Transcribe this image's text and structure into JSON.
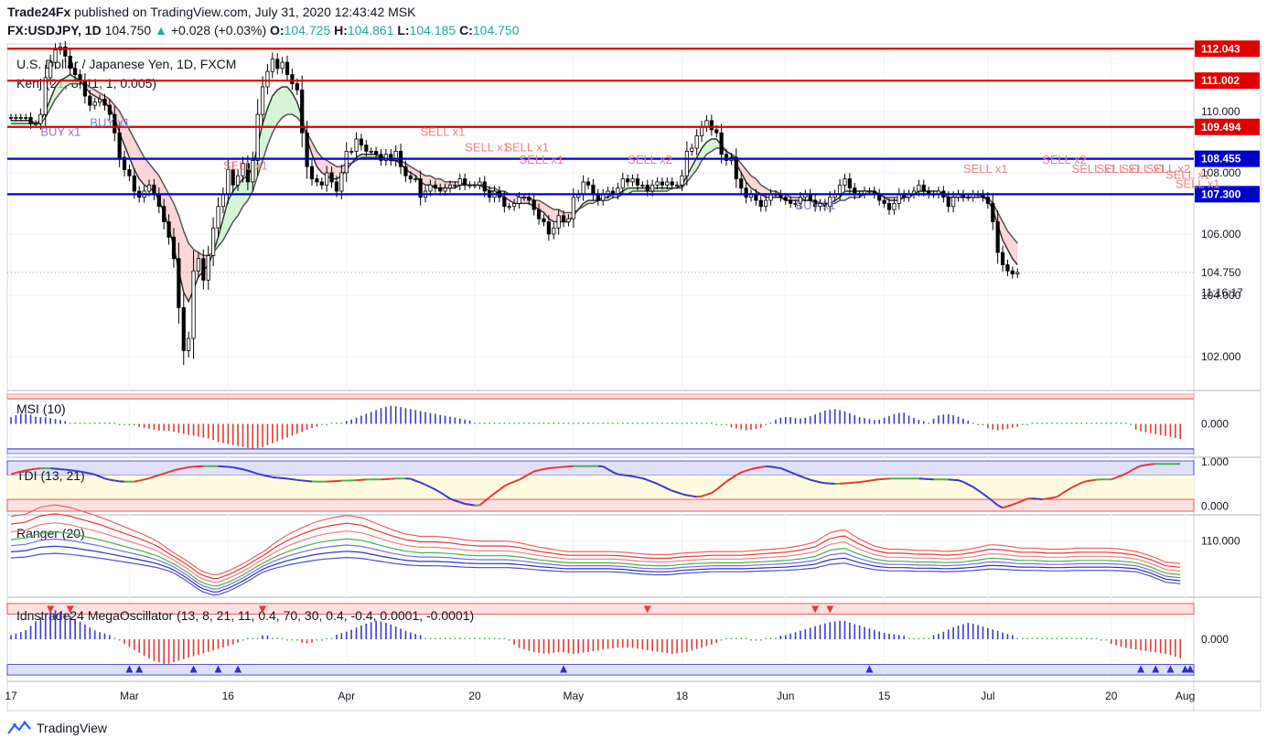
{
  "header": {
    "publisher": "Trade24Fx",
    "published_text": "published on TradingView.com, July 31, 2020 12:43:42 MSK",
    "symbol": "FX:USDJPY, 1D",
    "last": "104.750",
    "change": "+0.028 (+0.03%)",
    "open_label": "O:",
    "open": "104.725",
    "high_label": "H:",
    "high": "104.861",
    "low_label": "L:",
    "low": "104.185",
    "close_label": "C:",
    "close": "104.750"
  },
  "footer": {
    "brand": "TradingView"
  },
  "colors": {
    "up": "#26a69a",
    "red": "#ef5350",
    "blue_line": "#0000cc",
    "red_line": "#e00000",
    "grid": "#f0f3fa",
    "axis_text": "#131722",
    "cloud_red": "#f8c8c8",
    "cloud_green": "#c8f0c8"
  },
  "chart_data": [
    {
      "type": "candlestick",
      "title": "U.S. Dollar / Japanese Yen, 1D, FXCM",
      "indicator_label": "Kenj (21, 8, 11, 1, 0.005)",
      "y_ticks": [
        "110.000",
        "108.000",
        "106.000",
        "104.000",
        "102.000"
      ],
      "y_tick_values": [
        110,
        108,
        106,
        104,
        102
      ],
      "ylim": [
        100.9,
        112.2
      ],
      "x_ticks": [
        "17",
        "Mar",
        "16",
        "Apr",
        "20",
        "May",
        "18",
        "Jun",
        "15",
        "Jul",
        "20",
        "Aug"
      ],
      "x_tick_index": [
        0,
        24,
        44,
        68,
        94,
        114,
        136,
        157,
        177,
        198,
        223,
        238
      ],
      "last_price_label": "104.750",
      "countdown": "11:16:17",
      "levels": [
        {
          "value": 112.043,
          "label": "112.043",
          "color": "red"
        },
        {
          "value": 111.002,
          "label": "111.002",
          "color": "red"
        },
        {
          "value": 109.494,
          "label": "109.494",
          "color": "red"
        },
        {
          "value": 108.455,
          "label": "108.455",
          "color": "blue"
        },
        {
          "value": 107.3,
          "label": "107.300",
          "color": "blue"
        }
      ],
      "annotations": [
        {
          "text": "BUY x1",
          "i": 6,
          "y": 109.2,
          "kind": "buy"
        },
        {
          "text": "BUY x1",
          "i": 16,
          "y": 109.5,
          "kind": "buy"
        },
        {
          "text": "SELL x1",
          "i": 43,
          "y": 108.1,
          "kind": "sell"
        },
        {
          "text": "SELL x1",
          "i": 83,
          "y": 109.2,
          "kind": "sell"
        },
        {
          "text": "SELL x1",
          "i": 92,
          "y": 108.7,
          "kind": "sell"
        },
        {
          "text": "SELL x1",
          "i": 100,
          "y": 108.7,
          "kind": "sell"
        },
        {
          "text": "SELL x1",
          "i": 103,
          "y": 108.3,
          "kind": "sell"
        },
        {
          "text": "SELL x2",
          "i": 125,
          "y": 108.3,
          "kind": "sell"
        },
        {
          "text": "BUY x1",
          "i": 159,
          "y": 106.8,
          "kind": "buy"
        },
        {
          "text": "SELL x1",
          "i": 193,
          "y": 108.0,
          "kind": "sell"
        },
        {
          "text": "SELL x2",
          "i": 209,
          "y": 108.3,
          "kind": "sell"
        },
        {
          "text": "SELL x1",
          "i": 215,
          "y": 108.0,
          "kind": "sell"
        },
        {
          "text": "SELL x1",
          "i": 220,
          "y": 108.0,
          "kind": "sell"
        },
        {
          "text": "SELL x1",
          "i": 225,
          "y": 108.0,
          "kind": "sell"
        },
        {
          "text": "SELL x2",
          "i": 230,
          "y": 108.0,
          "kind": "sell"
        },
        {
          "text": "SELL x1",
          "i": 234,
          "y": 107.8,
          "kind": "sell"
        },
        {
          "text": "SELL x1",
          "i": 236,
          "y": 107.5,
          "kind": "sell"
        }
      ],
      "closes": [
        109.8,
        109.8,
        109.8,
        109.8,
        109.6,
        109.6,
        109.9,
        111.1,
        111.6,
        112.0,
        112.1,
        111.8,
        111.4,
        111.2,
        111.0,
        110.5,
        110.2,
        110.3,
        110.4,
        110.2,
        109.9,
        109.3,
        108.5,
        108.1,
        107.9,
        107.4,
        107.2,
        107.4,
        107.6,
        107.3,
        106.9,
        106.4,
        105.9,
        105.2,
        103.6,
        102.2,
        102.6,
        104.8,
        105.2,
        104.5,
        105.3,
        106.2,
        106.9,
        107.3,
        108.1,
        107.6,
        107.9,
        108.3,
        107.7,
        108.4,
        109.9,
        110.8,
        111.3,
        111.7,
        111.4,
        111.6,
        111.2,
        110.9,
        110.7,
        109.3,
        108.2,
        107.8,
        107.7,
        107.6,
        108.0,
        107.7,
        107.4,
        108.0,
        108.7,
        108.7,
        109.1,
        108.9,
        108.7,
        108.7,
        108.6,
        108.4,
        108.6,
        108.4,
        108.7,
        108.2,
        107.9,
        107.8,
        107.8,
        107.2,
        107.4,
        107.6,
        107.5,
        107.4,
        107.5,
        107.6,
        107.6,
        107.8,
        107.6,
        107.6,
        107.6,
        107.7,
        107.4,
        107.2,
        107.4,
        107.2,
        106.9,
        106.9,
        107.0,
        107.2,
        107.2,
        107.1,
        106.8,
        106.5,
        106.4,
        106.0,
        106.2,
        106.6,
        106.4,
        106.5,
        107.2,
        107.3,
        107.7,
        107.6,
        107.3,
        107.1,
        107.3,
        107.4,
        107.3,
        107.5,
        107.8,
        107.7,
        107.8,
        107.6,
        107.6,
        107.4,
        107.6,
        107.7,
        107.6,
        107.7,
        107.6,
        107.6,
        107.9,
        108.7,
        108.8,
        109.2,
        109.5,
        109.7,
        109.4,
        109.3,
        108.6,
        108.4,
        108.5,
        107.8,
        107.5,
        107.2,
        107.3,
        107.1,
        106.9,
        107.1,
        107.3,
        107.3,
        107.2,
        107.1,
        107.0,
        107.0,
        107.2,
        107.3,
        107.1,
        106.9,
        107.0,
        106.9,
        107.2,
        107.3,
        107.6,
        107.8,
        107.5,
        107.3,
        107.3,
        107.4,
        107.4,
        107.3,
        107.1,
        107.0,
        106.8,
        107.0,
        107.3,
        107.2,
        107.3,
        107.4,
        107.6,
        107.4,
        107.3,
        107.3,
        107.4,
        107.2,
        106.9,
        107.2,
        107.3,
        107.2,
        107.2,
        107.3,
        107.3,
        107.2,
        107.0,
        106.4,
        105.4,
        105.0,
        104.8,
        104.7,
        104.75
      ],
      "kenj_fast": [
        109.7,
        109.7,
        109.7,
        109.7,
        109.7,
        109.6,
        109.7,
        110.0,
        110.4,
        110.8,
        111.0,
        111.1,
        111.2,
        111.1,
        111.0,
        110.8,
        110.6,
        110.5,
        110.4,
        110.3,
        110.1,
        109.8,
        109.3,
        108.9,
        108.5,
        108.1,
        107.8,
        107.6,
        107.5,
        107.4,
        107.1,
        106.7,
        106.2,
        105.6,
        104.8,
        104.1,
        103.8,
        104.2,
        104.6,
        104.8,
        105.0,
        105.4,
        105.9,
        106.5,
        107.1,
        107.4,
        107.6,
        107.8,
        107.9,
        108.2,
        108.9,
        109.6,
        110.1,
        110.5,
        110.7,
        110.8,
        110.8,
        110.6,
        110.3,
        109.8,
        109.1,
        108.6,
        108.2,
        108.0,
        107.9,
        107.8,
        107.8,
        107.9,
        108.1,
        108.3,
        108.5,
        108.6,
        108.6,
        108.6,
        108.6,
        108.5,
        108.5,
        108.4,
        108.4,
        108.3,
        108.1,
        108.0,
        107.9,
        107.7,
        107.6,
        107.6,
        107.5,
        107.5,
        107.5,
        107.5,
        107.5,
        107.6,
        107.6,
        107.6,
        107.6,
        107.6,
        107.5,
        107.4,
        107.4,
        107.3,
        107.2,
        107.1,
        107.0,
        107.0,
        107.0,
        107.0,
        106.9,
        106.8,
        106.7,
        106.5,
        106.4,
        106.4,
        106.4,
        106.4,
        106.6,
        106.8,
        107.0,
        107.1,
        107.1,
        107.1,
        107.2,
        107.2,
        107.3,
        107.3,
        107.4,
        107.5,
        107.5,
        107.5,
        107.5,
        107.5,
        107.5,
        107.5,
        107.5,
        107.5,
        107.5,
        107.5,
        107.6,
        107.9,
        108.2,
        108.5,
        108.8,
        109.0,
        109.1,
        109.1,
        108.9,
        108.7,
        108.6,
        108.3,
        108.0,
        107.7,
        107.5,
        107.4,
        107.3,
        107.2,
        107.2,
        107.2,
        107.2,
        107.1,
        107.1,
        107.1,
        107.1,
        107.1,
        107.1,
        107.0,
        107.0,
        107.0,
        107.0,
        107.1,
        107.2,
        107.4,
        107.4,
        107.4,
        107.4,
        107.4,
        107.4,
        107.4,
        107.3,
        107.2,
        107.1,
        107.1,
        107.1,
        107.2,
        107.2,
        107.3,
        107.4,
        107.4,
        107.4,
        107.4,
        107.4,
        107.3,
        107.2,
        107.2,
        107.2,
        107.2,
        107.2,
        107.2,
        107.2,
        107.2,
        107.1,
        106.8,
        106.3,
        105.8,
        105.5,
        105.2,
        105.0
      ],
      "kenj_slow": [
        109.6,
        109.6,
        109.6,
        109.6,
        109.6,
        109.6,
        109.6,
        109.8,
        110.1,
        110.4,
        110.6,
        110.8,
        110.9,
        110.9,
        110.9,
        110.9,
        110.8,
        110.7,
        110.6,
        110.5,
        110.4,
        110.2,
        110.0,
        109.7,
        109.4,
        109.1,
        108.8,
        108.5,
        108.3,
        108.1,
        107.9,
        107.6,
        107.3,
        107.0,
        106.6,
        106.1,
        105.7,
        105.5,
        105.4,
        105.3,
        105.3,
        105.4,
        105.6,
        105.8,
        106.1,
        106.4,
        106.6,
        106.9,
        107.1,
        107.4,
        107.9,
        108.4,
        108.9,
        109.3,
        109.6,
        109.8,
        109.9,
        109.9,
        109.8,
        109.6,
        109.3,
        109.0,
        108.7,
        108.5,
        108.4,
        108.3,
        108.2,
        108.2,
        108.3,
        108.3,
        108.4,
        108.5,
        108.5,
        108.5,
        108.5,
        108.5,
        108.5,
        108.4,
        108.4,
        108.4,
        108.3,
        108.2,
        108.1,
        108.0,
        107.9,
        107.9,
        107.8,
        107.8,
        107.7,
        107.7,
        107.7,
        107.7,
        107.6,
        107.6,
        107.6,
        107.6,
        107.6,
        107.5,
        107.5,
        107.4,
        107.4,
        107.3,
        107.3,
        107.2,
        107.2,
        107.2,
        107.1,
        107.1,
        107.0,
        106.9,
        106.8,
        106.8,
        106.7,
        106.7,
        106.7,
        106.8,
        106.9,
        107.0,
        107.0,
        107.1,
        107.1,
        107.1,
        107.2,
        107.2,
        107.3,
        107.3,
        107.4,
        107.4,
        107.4,
        107.4,
        107.4,
        107.4,
        107.4,
        107.4,
        107.5,
        107.5,
        107.5,
        107.7,
        107.9,
        108.1,
        108.4,
        108.6,
        108.7,
        108.8,
        108.8,
        108.7,
        108.6,
        108.5,
        108.3,
        108.1,
        107.9,
        107.8,
        107.6,
        107.5,
        107.4,
        107.4,
        107.3,
        107.3,
        107.2,
        107.2,
        107.2,
        107.1,
        107.1,
        107.1,
        107.0,
        107.0,
        107.0,
        107.0,
        107.1,
        107.1,
        107.2,
        107.2,
        107.2,
        107.3,
        107.3,
        107.3,
        107.3,
        107.2,
        107.2,
        107.2,
        107.2,
        107.2,
        107.2,
        107.3,
        107.3,
        107.3,
        107.3,
        107.3,
        107.3,
        107.3,
        107.3,
        107.3,
        107.3,
        107.3,
        107.3,
        107.3,
        107.3,
        107.2,
        107.2,
        107.0,
        106.7,
        106.4,
        106.1,
        105.9,
        105.7
      ]
    },
    {
      "type": "histogram",
      "title": "MSI (10)",
      "y_ticks": [
        "0.000"
      ],
      "ylim": [
        -1.0,
        1.0
      ],
      "band_high": 0.75,
      "band_low": -0.75,
      "values": [
        0.2,
        0.3,
        0.3,
        0.2,
        0.2,
        0.15,
        0.1,
        0.05,
        0.05,
        0.05,
        0.05,
        0.0,
        0.0,
        -0.05,
        -0.05,
        -0.1,
        -0.15,
        -0.2,
        -0.2,
        -0.25,
        -0.3,
        -0.35,
        -0.4,
        -0.45,
        -0.55,
        -0.6,
        -0.65,
        -0.7,
        -0.75,
        -0.7,
        -0.6,
        -0.5,
        -0.4,
        -0.3,
        -0.2,
        -0.1,
        -0.05,
        0.0,
        0.05,
        0.1,
        0.2,
        0.3,
        0.4,
        0.5,
        0.55,
        0.5,
        0.45,
        0.4,
        0.35,
        0.3,
        0.25,
        0.2,
        0.15,
        0.1,
        0.05,
        0.05,
        0.03,
        0.02,
        0.03,
        0.02,
        0.03,
        0.02,
        0.03,
        0.02,
        0.03,
        0.03,
        0.02,
        0.03,
        0.03,
        0.02,
        0.03,
        0.02,
        0.03,
        0.03,
        0.02,
        0.03,
        0.02,
        0.03,
        0.02,
        0.03,
        0.02,
        0.03,
        -0.05,
        -0.1,
        -0.15,
        -0.2,
        -0.15,
        -0.1,
        0.1,
        0.2,
        0.2,
        0.15,
        0.2,
        0.3,
        0.4,
        0.45,
        0.4,
        0.3,
        0.2,
        0.15,
        0.1,
        0.2,
        0.3,
        0.35,
        0.2,
        0.1,
        0.05,
        0.25,
        0.3,
        0.25,
        0.15,
        0.05,
        -0.05,
        -0.15,
        -0.2,
        -0.15,
        -0.1,
        -0.05,
        0.03,
        0.02,
        0.03,
        0.02,
        0.03,
        0.02,
        0.03,
        0.02,
        0.03,
        0.02,
        0.03,
        0.02,
        -0.2,
        -0.25,
        -0.3,
        -0.35,
        -0.4,
        -0.45
      ],
      "scale_to": 238
    },
    {
      "type": "line",
      "title": "TDI (13, 21)",
      "y_ticks": [
        "1.000",
        "0.000"
      ],
      "ylim": [
        -0.2,
        1.1
      ],
      "band_high": 0.7,
      "band_low": 0.15,
      "values": [
        0.72,
        0.8,
        0.85,
        0.85,
        0.82,
        0.78,
        0.72,
        0.6,
        0.55,
        0.55,
        0.62,
        0.72,
        0.82,
        0.88,
        0.9,
        0.9,
        0.88,
        0.82,
        0.72,
        0.65,
        0.62,
        0.58,
        0.55,
        0.55,
        0.57,
        0.58,
        0.6,
        0.6,
        0.62,
        0.62,
        0.5,
        0.35,
        0.15,
        0.05,
        0.0,
        0.25,
        0.48,
        0.6,
        0.78,
        0.85,
        0.88,
        0.9,
        0.9,
        0.9,
        0.72,
        0.68,
        0.62,
        0.5,
        0.35,
        0.25,
        0.2,
        0.3,
        0.55,
        0.75,
        0.85,
        0.9,
        0.85,
        0.72,
        0.6,
        0.52,
        0.5,
        0.52,
        0.55,
        0.6,
        0.62,
        0.62,
        0.62,
        0.6,
        0.6,
        0.58,
        0.42,
        0.2,
        -0.05,
        0.05,
        0.18,
        0.15,
        0.2,
        0.4,
        0.55,
        0.6,
        0.6,
        0.72,
        0.9,
        0.95,
        0.95,
        0.95
      ],
      "scale_to": 238
    },
    {
      "type": "line",
      "title": "Ranger (20)",
      "y_ticks": [
        "110.000"
      ],
      "ylim": [
        102.5,
        113.5
      ],
      "series_base": [
        110.0,
        110.2,
        110.8,
        111.0,
        110.8,
        110.4,
        110.0,
        109.5,
        109.0,
        108.5,
        107.9,
        107.0,
        105.8,
        104.4,
        103.8,
        104.5,
        105.5,
        106.7,
        107.7,
        108.5,
        109.1,
        109.6,
        109.9,
        110.1,
        109.9,
        109.4,
        108.9,
        108.5,
        108.3,
        108.3,
        108.2,
        108.0,
        107.9,
        107.9,
        107.9,
        107.7,
        107.4,
        107.2,
        107.0,
        107.0,
        107.0,
        107.0,
        106.9,
        106.7,
        106.6,
        106.6,
        106.8,
        106.9,
        107.0,
        107.0,
        107.0,
        107.1,
        107.2,
        107.3,
        107.5,
        107.8,
        108.6,
        108.9,
        108.1,
        107.5,
        107.2,
        107.2,
        107.1,
        107.1,
        107.0,
        107.1,
        107.3,
        107.6,
        107.5,
        107.3,
        107.3,
        107.2,
        107.2,
        107.3,
        107.3,
        107.3,
        107.2,
        107.0,
        106.4,
        105.6,
        105.4
      ],
      "scale_to": 238
    },
    {
      "type": "histogram",
      "title": "Idnstrade24 MegaOscillator (13, 8, 21, 11, 0.4, 70, 30, 0.4, -0.4, 0.0001, -0.0001)",
      "y_ticks": [
        "0.000"
      ],
      "ylim": [
        -1.0,
        1.0
      ],
      "band_high": 0.6,
      "band_low": -0.6,
      "values": [
        0.1,
        0.2,
        0.5,
        0.7,
        0.6,
        0.4,
        0.2,
        0.1,
        -0.1,
        -0.3,
        -0.5,
        -0.6,
        -0.5,
        -0.4,
        -0.3,
        -0.2,
        -0.1,
        0.05,
        0.1,
        0.05,
        -0.05,
        -0.1,
        -0.05,
        0.1,
        0.2,
        0.35,
        0.45,
        0.35,
        0.2,
        0.1,
        0.05,
        0.05,
        0.05,
        0.03,
        0.05,
        0.05,
        -0.2,
        -0.3,
        -0.35,
        -0.3,
        -0.35,
        -0.3,
        -0.25,
        -0.2,
        -0.2,
        -0.25,
        -0.3,
        -0.35,
        -0.3,
        -0.2,
        -0.1,
        0.05,
        0.05,
        -0.05,
        0.05,
        0.1,
        0.2,
        0.3,
        0.4,
        0.45,
        0.35,
        0.25,
        0.15,
        0.1,
        0.05,
        0.05,
        0.15,
        0.3,
        0.4,
        0.3,
        0.2,
        0.1,
        0.05,
        0.05,
        0.05,
        0.05,
        0.05,
        0.05,
        -0.1,
        -0.2,
        -0.25,
        -0.3,
        -0.35,
        -0.45
      ],
      "scale_to": 238
    }
  ]
}
